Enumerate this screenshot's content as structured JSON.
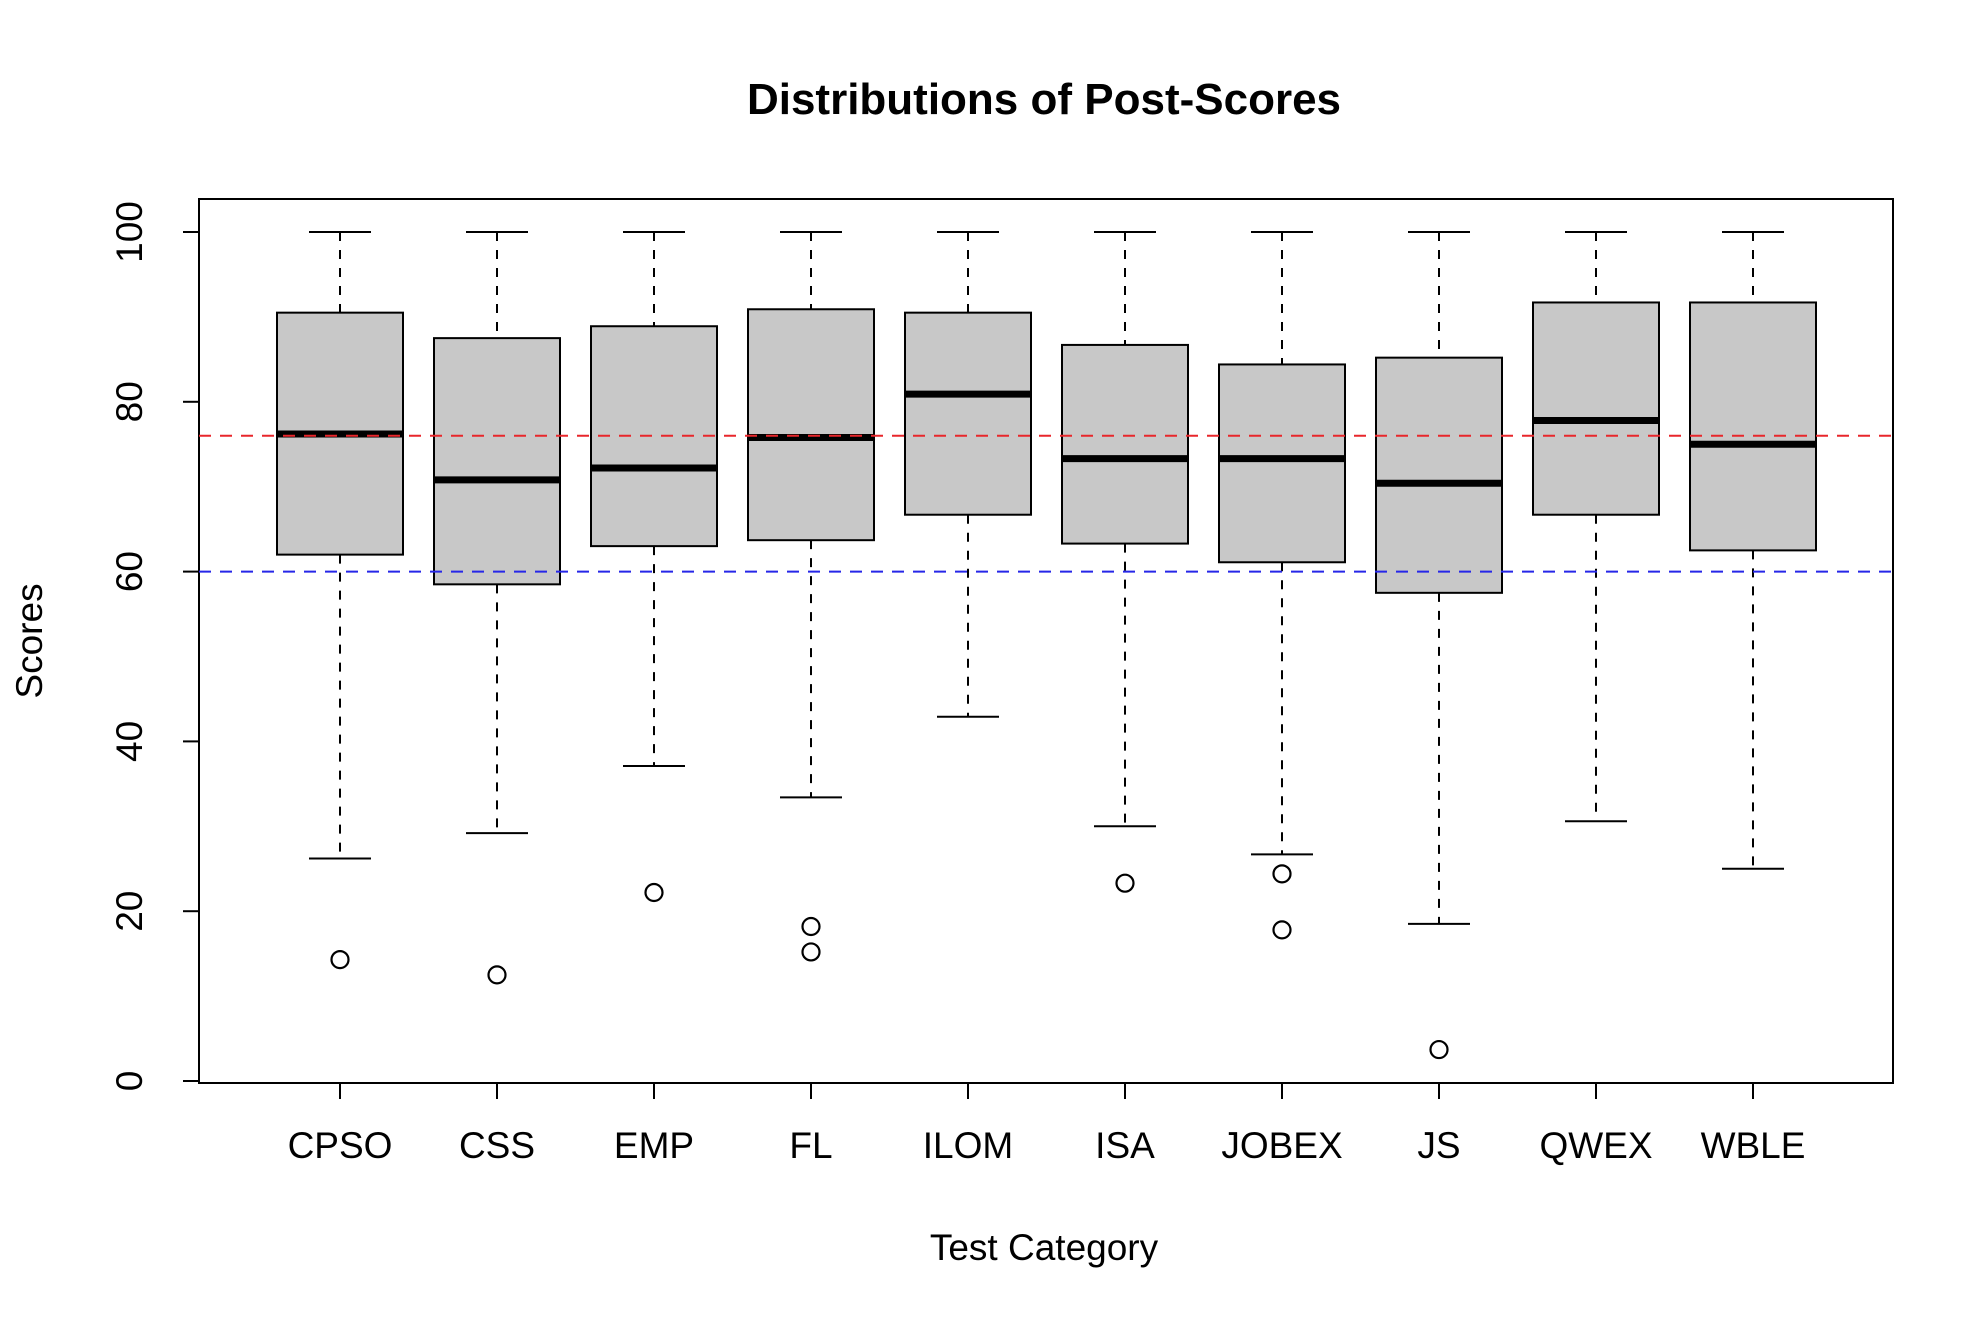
{
  "chart_data": {
    "type": "boxplot",
    "title": "Distributions of Post-Scores",
    "xlabel": "Test Category",
    "ylabel": "Scores",
    "ylim": [
      0,
      100
    ],
    "yticks": [
      "0",
      "20",
      "40",
      "60",
      "80",
      "100"
    ],
    "categories": [
      "CPSO",
      "CSS",
      "EMP",
      "FL",
      "ILOM",
      "ISA",
      "JOBEX",
      "JS",
      "QWEX",
      "WBLE"
    ],
    "boxes": [
      {
        "category": "CPSO",
        "whisker_low": 26.2,
        "q1": 62.0,
        "median": 76.2,
        "q3": 90.5,
        "whisker_high": 100,
        "outliers": [
          14.3
        ]
      },
      {
        "category": "CSS",
        "whisker_low": 29.2,
        "q1": 58.5,
        "median": 70.8,
        "q3": 87.5,
        "whisker_high": 100,
        "outliers": [
          12.5
        ]
      },
      {
        "category": "EMP",
        "whisker_low": 37.1,
        "q1": 63.0,
        "median": 72.2,
        "q3": 88.9,
        "whisker_high": 100,
        "outliers": [
          22.2
        ]
      },
      {
        "category": "FL",
        "whisker_low": 33.4,
        "q1": 63.7,
        "median": 75.8,
        "q3": 90.9,
        "whisker_high": 100,
        "outliers": [
          18.2,
          15.2
        ]
      },
      {
        "category": "ILOM",
        "whisker_low": 42.9,
        "q1": 66.7,
        "median": 80.9,
        "q3": 90.5,
        "whisker_high": 100,
        "outliers": []
      },
      {
        "category": "ISA",
        "whisker_low": 30.0,
        "q1": 63.3,
        "median": 73.3,
        "q3": 86.7,
        "whisker_high": 100,
        "outliers": [
          23.3
        ]
      },
      {
        "category": "JOBEX",
        "whisker_low": 26.7,
        "q1": 61.1,
        "median": 73.3,
        "q3": 84.4,
        "whisker_high": 100,
        "outliers": [
          24.4,
          17.8
        ]
      },
      {
        "category": "JS",
        "whisker_low": 18.5,
        "q1": 57.5,
        "median": 70.4,
        "q3": 85.2,
        "whisker_high": 100,
        "outliers": [
          3.7
        ]
      },
      {
        "category": "QWEX",
        "whisker_low": 30.6,
        "q1": 66.7,
        "median": 77.8,
        "q3": 91.7,
        "whisker_high": 100,
        "outliers": []
      },
      {
        "category": "WBLE",
        "whisker_low": 25.0,
        "q1": 62.5,
        "median": 75.0,
        "q3": 91.7,
        "whisker_high": 100,
        "outliers": []
      }
    ],
    "reference_lines": [
      {
        "value": 76,
        "color": "#e8262b",
        "style": "dashed"
      },
      {
        "value": 60,
        "color": "#2626e8",
        "style": "dashed"
      }
    ],
    "box_fill": "#c8c8c8",
    "grid": false,
    "legend": "none"
  }
}
